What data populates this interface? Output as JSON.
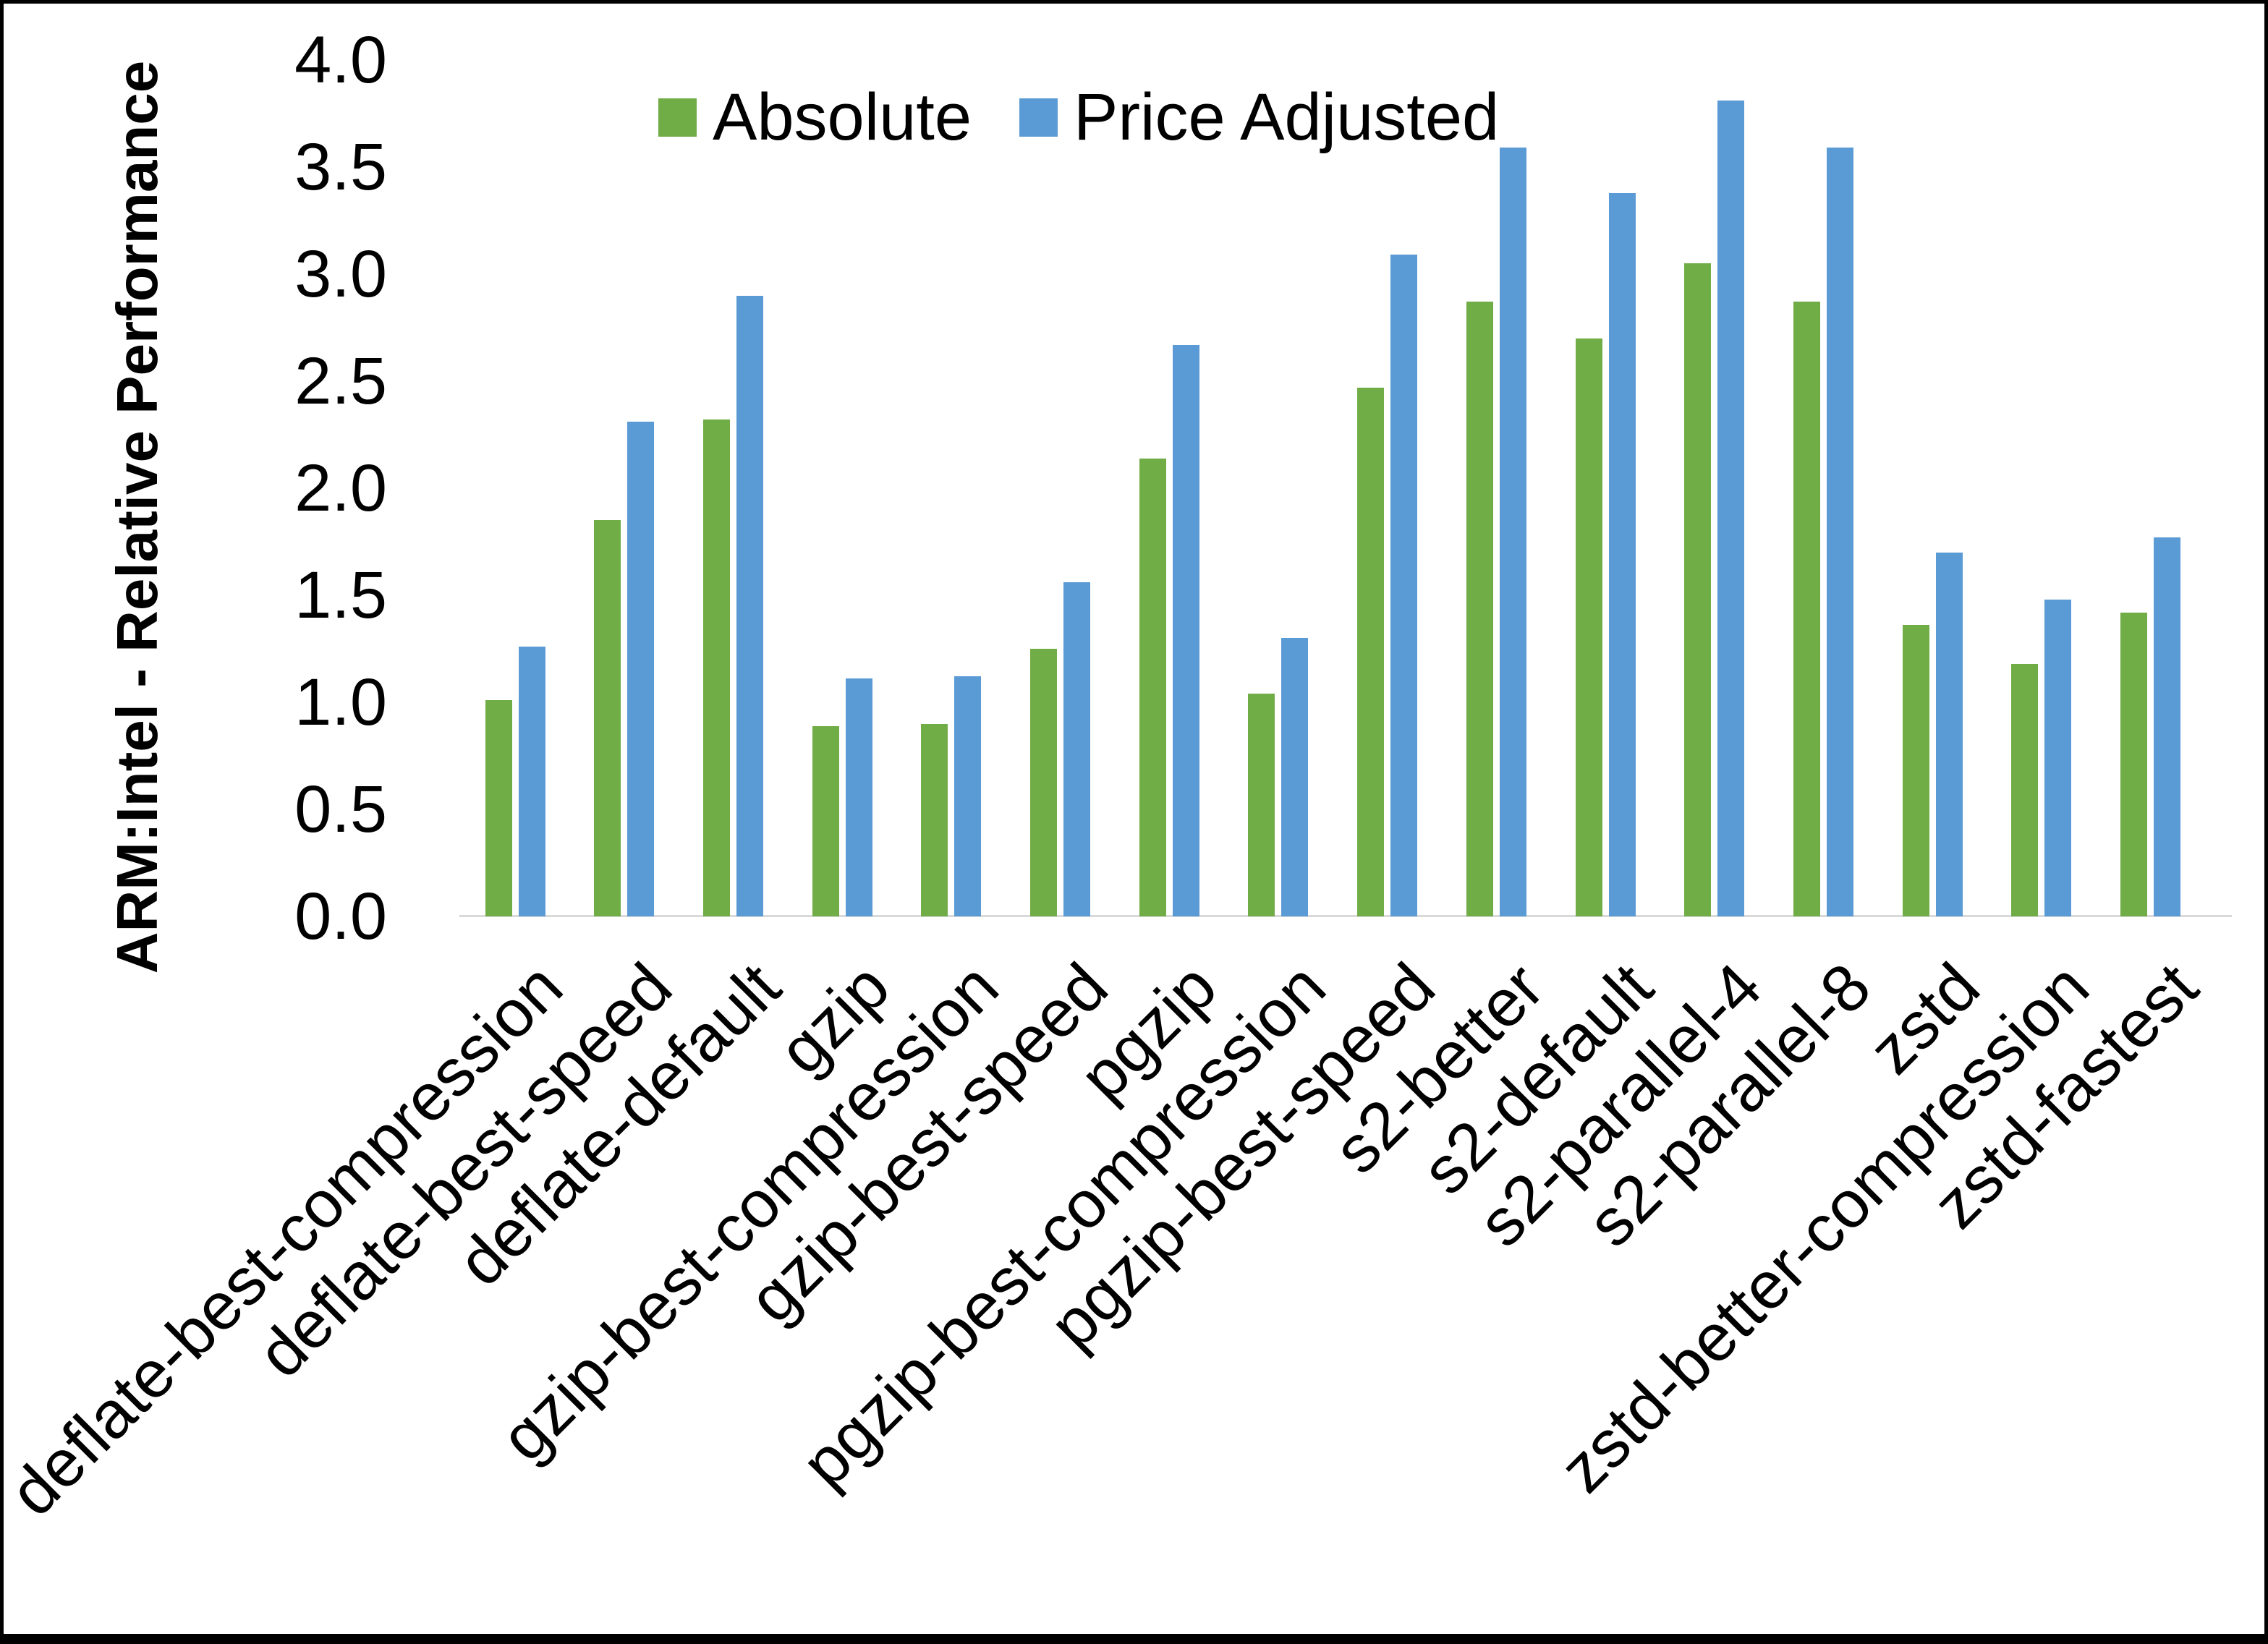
{
  "frame": {
    "background": "#ffffff",
    "border_color": "#000000"
  },
  "axis_line_color": "#d9d9d9",
  "chart_data": {
    "type": "bar",
    "title": "",
    "xlabel": "",
    "ylabel": "ARM:Intel - Relative Performance",
    "ylim": [
      0.0,
      4.0
    ],
    "ytick_labels": [
      "0.0",
      "0.5",
      "1.0",
      "1.5",
      "2.0",
      "2.5",
      "3.0",
      "3.5",
      "4.0"
    ],
    "grid": false,
    "legend_position": "top-center",
    "x_tick_rotation_deg": 45,
    "categories": [
      "deflate-best-compression",
      "deflate-best-speed",
      "deflate-default",
      "gzip",
      "gzip-best-compression",
      "gzip-best-speed",
      "pgzip",
      "pgzip-best-compression",
      "pgzip-best-speed",
      "s2-better",
      "s2-default",
      "s2-parallel-4",
      "s2-parallel-8",
      "zstd",
      "zstd-better-compression",
      "zstd-fastest"
    ],
    "series": [
      {
        "name": "Absolute",
        "color": "#70AD47",
        "values": [
          1.01,
          1.85,
          2.32,
          0.89,
          0.9,
          1.25,
          2.14,
          1.04,
          2.47,
          2.87,
          2.7,
          3.05,
          2.87,
          1.36,
          1.18,
          1.42
        ]
      },
      {
        "name": "Price Adjusted",
        "color": "#5B9BD5",
        "values": [
          1.26,
          2.31,
          2.9,
          1.11,
          1.12,
          1.56,
          2.67,
          1.3,
          3.09,
          3.59,
          3.38,
          3.81,
          3.59,
          1.7,
          1.48,
          1.77
        ]
      }
    ]
  }
}
